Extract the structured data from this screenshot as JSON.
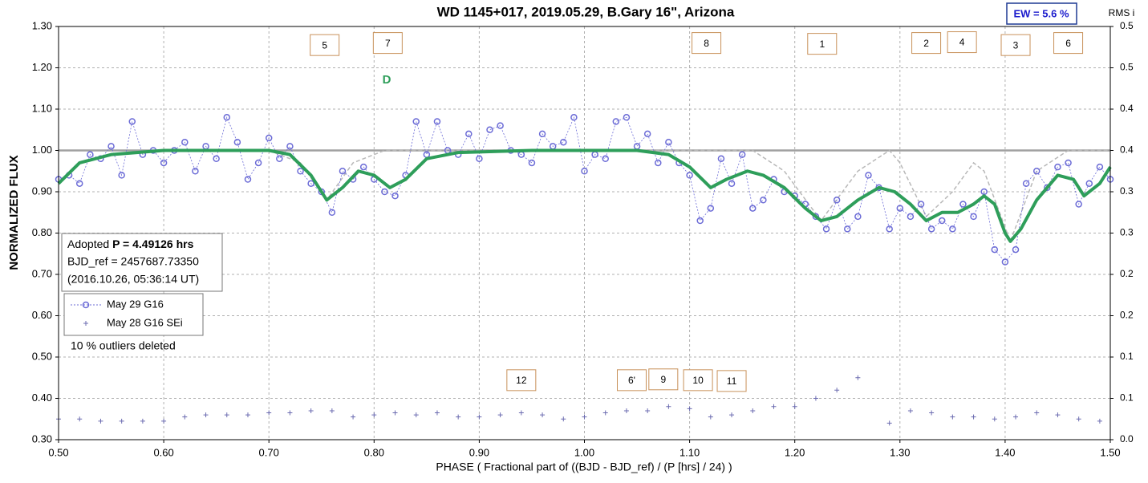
{
  "chart_data": {
    "type": "scatter",
    "title": "WD 1145+017, 2019.05.29, B.Gary 16\", Arizona",
    "x_label": "PHASE ( Fractional part of ((BJD - BJD_ref) / (P [hrs] / 24) )",
    "y_label": "NORMALIZED FLUX",
    "y2_label": "RMS i",
    "ew_label": "EW =  5.6 %",
    "info": {
      "adopted": "Adopted",
      "period": "P = 4.49126 hrs",
      "bjd_ref": "BJD_ref = 2457687.73350",
      "date": "(2016.10.26, 05:36:14 UT)"
    },
    "note": "10 % outliers deleted",
    "grid": true,
    "xlim": [
      0.5,
      1.5
    ],
    "xticks": [
      {
        "value": 0.5,
        "label": "0.50"
      },
      {
        "value": 0.6,
        "label": "0.60"
      },
      {
        "value": 0.7,
        "label": "0.70"
      },
      {
        "value": 0.8,
        "label": "0.80"
      },
      {
        "value": 0.9,
        "label": "0.90"
      },
      {
        "value": 1.0,
        "label": "1.00"
      },
      {
        "value": 1.1,
        "label": "1.10"
      },
      {
        "value": 1.2,
        "label": "1.20"
      },
      {
        "value": 1.3,
        "label": "1.30"
      },
      {
        "value": 1.4,
        "label": "1.40"
      },
      {
        "value": 1.5,
        "label": "1.50"
      }
    ],
    "ylim": [
      0.3,
      1.3
    ],
    "yticks": [
      {
        "value": 0.3,
        "label": "0.30"
      },
      {
        "value": 0.4,
        "label": "0.40"
      },
      {
        "value": 0.5,
        "label": "0.50"
      },
      {
        "value": 0.6,
        "label": "0.60"
      },
      {
        "value": 0.7,
        "label": "0.70"
      },
      {
        "value": 0.8,
        "label": "0.80"
      },
      {
        "value": 0.9,
        "label": "0.90"
      },
      {
        "value": 1.0,
        "label": "1.00"
      },
      {
        "value": 1.1,
        "label": "1.10"
      },
      {
        "value": 1.2,
        "label": "1.20"
      },
      {
        "value": 1.3,
        "label": "1.30"
      }
    ],
    "y2lim": [
      0,
      0.5
    ],
    "y2ticks": [
      {
        "value": 0,
        "label": "0.0"
      },
      {
        "value": 0.05,
        "label": "0.1"
      },
      {
        "value": 0.1,
        "label": "0.1"
      },
      {
        "value": 0.15,
        "label": "0.2"
      },
      {
        "value": 0.2,
        "label": "0.2"
      },
      {
        "value": 0.25,
        "label": "0.3"
      },
      {
        "value": 0.3,
        "label": "0.3"
      },
      {
        "value": 0.35,
        "label": "0.4"
      },
      {
        "value": 0.4,
        "label": "0.4"
      },
      {
        "value": 0.45,
        "label": "0.5"
      },
      {
        "value": 0.5,
        "label": "0.5"
      }
    ],
    "series": [
      {
        "name": "May 29 G16",
        "color": "#6b6bd6",
        "style": "circle-dash",
        "x": [
          0.5,
          0.51,
          0.52,
          0.53,
          0.54,
          0.55,
          0.56,
          0.57,
          0.58,
          0.59,
          0.6,
          0.61,
          0.62,
          0.63,
          0.64,
          0.65,
          0.66,
          0.67,
          0.68,
          0.69,
          0.7,
          0.71,
          0.72,
          0.73,
          0.74,
          0.75,
          0.76,
          0.77,
          0.78,
          0.79,
          0.8,
          0.81,
          0.82,
          0.83,
          0.84,
          0.85,
          0.86,
          0.87,
          0.88,
          0.89,
          0.9,
          0.91,
          0.92,
          0.93,
          0.94,
          0.95,
          0.96,
          0.97,
          0.98,
          0.99,
          1.0,
          1.01,
          1.02,
          1.03,
          1.04,
          1.05,
          1.06,
          1.07,
          1.08,
          1.09,
          1.1,
          1.11,
          1.12,
          1.13,
          1.14,
          1.15,
          1.16,
          1.17,
          1.18,
          1.19,
          1.2,
          1.21,
          1.22,
          1.23,
          1.24,
          1.25,
          1.26,
          1.27,
          1.28,
          1.29,
          1.3,
          1.31,
          1.32,
          1.33,
          1.34,
          1.35,
          1.36,
          1.37,
          1.38,
          1.39,
          1.4,
          1.41,
          1.42,
          1.43,
          1.44,
          1.45,
          1.46,
          1.47,
          1.48,
          1.49,
          1.5
        ],
        "values": [
          0.93,
          0.94,
          0.92,
          0.99,
          0.98,
          1.01,
          0.94,
          1.07,
          0.99,
          1.0,
          0.97,
          1.0,
          1.02,
          0.95,
          1.01,
          0.98,
          1.08,
          1.02,
          0.93,
          0.97,
          1.03,
          0.98,
          1.01,
          0.95,
          0.92,
          0.9,
          0.85,
          0.95,
          0.93,
          0.96,
          0.93,
          0.9,
          0.89,
          0.94,
          1.07,
          0.99,
          1.07,
          1.0,
          0.99,
          1.04,
          0.98,
          1.05,
          1.06,
          1.0,
          0.99,
          0.97,
          1.04,
          1.01,
          1.02,
          1.08,
          0.95,
          0.99,
          0.98,
          1.07,
          1.08,
          1.01,
          1.04,
          0.97,
          1.02,
          0.97,
          0.94,
          0.83,
          0.86,
          0.98,
          0.92,
          0.99,
          0.86,
          0.88,
          0.93,
          0.9,
          0.89,
          0.87,
          0.84,
          0.81,
          0.88,
          0.81,
          0.84,
          0.94,
          0.91,
          0.81,
          0.86,
          0.84,
          0.87,
          0.81,
          0.83,
          0.81,
          0.87,
          0.84,
          0.9,
          0.76,
          0.73,
          0.76,
          0.92,
          0.95,
          0.91,
          0.96,
          0.97,
          0.87,
          0.92,
          0.96,
          0.93
        ]
      },
      {
        "name": "May 28 G16 SEi",
        "color": "#6b6bb0",
        "style": "cross",
        "x": [
          0.5,
          0.52,
          0.54,
          0.56,
          0.58,
          0.6,
          0.62,
          0.64,
          0.66,
          0.68,
          0.7,
          0.72,
          0.74,
          0.76,
          0.78,
          0.8,
          0.82,
          0.84,
          0.86,
          0.88,
          0.9,
          0.92,
          0.94,
          0.96,
          0.98,
          1.0,
          1.02,
          1.04,
          1.06,
          1.08,
          1.1,
          1.12,
          1.14,
          1.16,
          1.18,
          1.2,
          1.22,
          1.24,
          1.26,
          1.29,
          1.31,
          1.33,
          1.35,
          1.37,
          1.39,
          1.41,
          1.43,
          1.45,
          1.47,
          1.49
        ],
        "values": [
          0.35,
          0.35,
          0.345,
          0.345,
          0.345,
          0.345,
          0.355,
          0.36,
          0.36,
          0.36,
          0.365,
          0.365,
          0.37,
          0.37,
          0.355,
          0.36,
          0.365,
          0.36,
          0.365,
          0.355,
          0.355,
          0.36,
          0.365,
          0.36,
          0.35,
          0.355,
          0.365,
          0.37,
          0.37,
          0.38,
          0.375,
          0.355,
          0.36,
          0.37,
          0.38,
          0.38,
          0.4,
          0.42,
          0.45,
          0.34,
          0.37,
          0.365,
          0.355,
          0.355,
          0.35,
          0.355,
          0.365,
          0.36,
          0.35,
          0.345
        ]
      },
      {
        "color": "#a0a0a0",
        "style": "solid",
        "x": [
          0.5,
          1.5
        ],
        "values": [
          1.0,
          1.0
        ]
      },
      {
        "color": "#b8b8b8",
        "style": "dash",
        "x": [
          0.7,
          0.73,
          0.755,
          0.78,
          0.81,
          1.16,
          1.19,
          1.225,
          1.26,
          1.29,
          1.3,
          1.325,
          1.35,
          1.37,
          1.38,
          1.405,
          1.43,
          1.46,
          1.5
        ],
        "values": [
          1.0,
          0.97,
          0.88,
          0.97,
          1.0,
          1.0,
          0.95,
          0.83,
          0.95,
          1.0,
          0.97,
          0.84,
          0.9,
          0.97,
          0.95,
          0.78,
          0.95,
          1.0,
          1.0
        ]
      },
      {
        "color": "#2e9e5a",
        "style": "fit",
        "x": [
          0.5,
          0.52,
          0.55,
          0.6,
          0.65,
          0.7,
          0.72,
          0.74,
          0.755,
          0.77,
          0.785,
          0.8,
          0.815,
          0.83,
          0.85,
          0.88,
          0.95,
          1.05,
          1.08,
          1.1,
          1.12,
          1.135,
          1.155,
          1.17,
          1.19,
          1.21,
          1.225,
          1.24,
          1.26,
          1.28,
          1.295,
          1.31,
          1.325,
          1.34,
          1.355,
          1.37,
          1.38,
          1.39,
          1.4,
          1.405,
          1.415,
          1.43,
          1.45,
          1.465,
          1.475,
          1.49,
          1.5
        ],
        "values": [
          0.92,
          0.97,
          0.99,
          1.0,
          1.0,
          1.0,
          0.99,
          0.94,
          0.88,
          0.91,
          0.95,
          0.94,
          0.91,
          0.93,
          0.98,
          0.995,
          1.0,
          1.0,
          0.99,
          0.96,
          0.91,
          0.93,
          0.95,
          0.94,
          0.91,
          0.86,
          0.83,
          0.84,
          0.88,
          0.91,
          0.9,
          0.87,
          0.83,
          0.85,
          0.85,
          0.87,
          0.89,
          0.87,
          0.8,
          0.78,
          0.81,
          0.88,
          0.94,
          0.93,
          0.89,
          0.92,
          0.96
        ]
      }
    ],
    "annotations": [
      {
        "label": "5",
        "x": 0.753,
        "y": 1.255
      },
      {
        "label": "7",
        "x": 0.813,
        "y": 1.26
      },
      {
        "label": "8",
        "x": 1.116,
        "y": 1.26
      },
      {
        "label": "1",
        "x": 1.226,
        "y": 1.258
      },
      {
        "label": "2",
        "x": 1.325,
        "y": 1.26
      },
      {
        "label": "4",
        "x": 1.359,
        "y": 1.262
      },
      {
        "label": "3",
        "x": 1.41,
        "y": 1.255
      },
      {
        "label": "6",
        "x": 1.46,
        "y": 1.26
      },
      {
        "label": "12",
        "x": 0.94,
        "y": 0.444
      },
      {
        "label": "6'",
        "x": 1.045,
        "y": 0.444
      },
      {
        "label": "9",
        "x": 1.075,
        "y": 0.446
      },
      {
        "label": "10",
        "x": 1.108,
        "y": 0.444
      },
      {
        "label": "11",
        "x": 1.14,
        "y": 0.442
      }
    ],
    "marker_label": {
      "label": "D",
      "x": 0.812,
      "y": 1.17,
      "color": "#2e9e5a"
    }
  }
}
